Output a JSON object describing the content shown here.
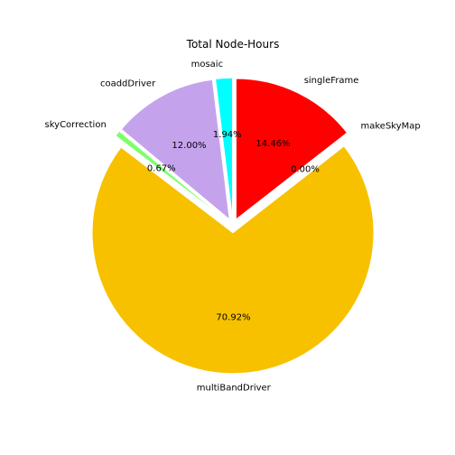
{
  "chart_data": {
    "type": "pie",
    "title": "Total Node-Hours",
    "slices": [
      {
        "name": "mosaic",
        "percent": 1.94,
        "label": "1.94%",
        "color": "#00ffff",
        "explode": 0.05
      },
      {
        "name": "coaddDriver",
        "percent": 12.0,
        "label": "12.00%",
        "color": "#c5a3ec",
        "explode": 0.05
      },
      {
        "name": "skyCorrection",
        "percent": 0.67,
        "label": "0.67%",
        "color": "#7dff6a",
        "explode": 0.05
      },
      {
        "name": "multiBandDriver",
        "percent": 70.92,
        "label": "70.92%",
        "color": "#f7c100",
        "explode": 0.05
      },
      {
        "name": "makeSkyMap",
        "percent": 0.0,
        "label": "0.00%",
        "color": "#1f77b4",
        "explode": 0.05
      },
      {
        "name": "singleFrame",
        "percent": 14.46,
        "label": "14.46%",
        "color": "#ff0000",
        "explode": 0.05
      }
    ],
    "start_angle_deg": 90,
    "direction": "counterclockwise",
    "legend": "none"
  }
}
